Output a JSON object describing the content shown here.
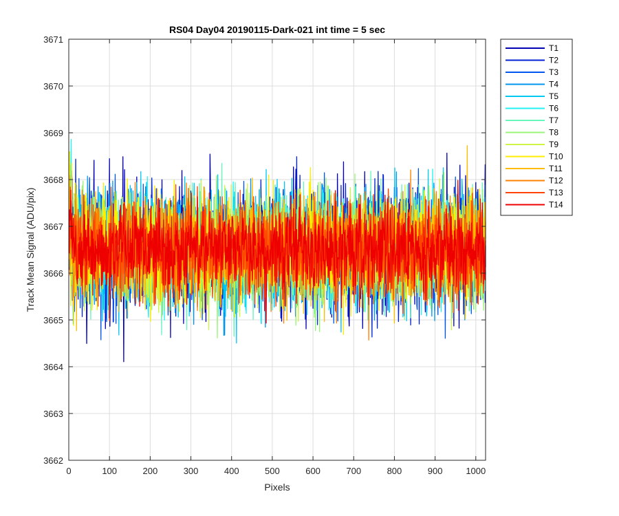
{
  "chart_data": {
    "type": "line",
    "title": "RS04 Day04 20190115-Dark-021 int time = 5 sec",
    "xlabel": "Pixels",
    "ylabel": "Track Mean Signal (ADU/pix)",
    "xlim": [
      0,
      1024
    ],
    "ylim": [
      3662,
      3671
    ],
    "xticks": [
      0,
      100,
      200,
      300,
      400,
      500,
      600,
      700,
      800,
      900,
      1000
    ],
    "yticks": [
      3662,
      3663,
      3664,
      3665,
      3666,
      3667,
      3668,
      3669,
      3670,
      3671
    ],
    "grid": true,
    "legend_position": "outside-top-right",
    "n_points": 1024,
    "mean_level": 3666.5,
    "series": [
      {
        "name": "T1",
        "color": "#0000B3",
        "spread": 1.05
      },
      {
        "name": "T2",
        "color": "#0022D4",
        "spread": 1.0
      },
      {
        "name": "T3",
        "color": "#0055EE",
        "spread": 0.95
      },
      {
        "name": "T4",
        "color": "#0095EE",
        "spread": 0.95
      },
      {
        "name": "T5",
        "color": "#00C8F5",
        "spread": 0.95
      },
      {
        "name": "T6",
        "color": "#22F2F2",
        "spread": 0.9
      },
      {
        "name": "T7",
        "color": "#66F5BB",
        "spread": 0.9
      },
      {
        "name": "T8",
        "color": "#99F577",
        "spread": 0.9
      },
      {
        "name": "T9",
        "color": "#CCF544",
        "spread": 0.9
      },
      {
        "name": "T10",
        "color": "#FFEE00",
        "spread": 0.9
      },
      {
        "name": "T11",
        "color": "#FFBB00",
        "spread": 0.85
      },
      {
        "name": "T12",
        "color": "#FF8000",
        "spread": 0.85
      },
      {
        "name": "T13",
        "color": "#FF4400",
        "spread": 0.8
      },
      {
        "name": "T14",
        "color": "#EE0000",
        "spread": 0.75
      }
    ]
  }
}
